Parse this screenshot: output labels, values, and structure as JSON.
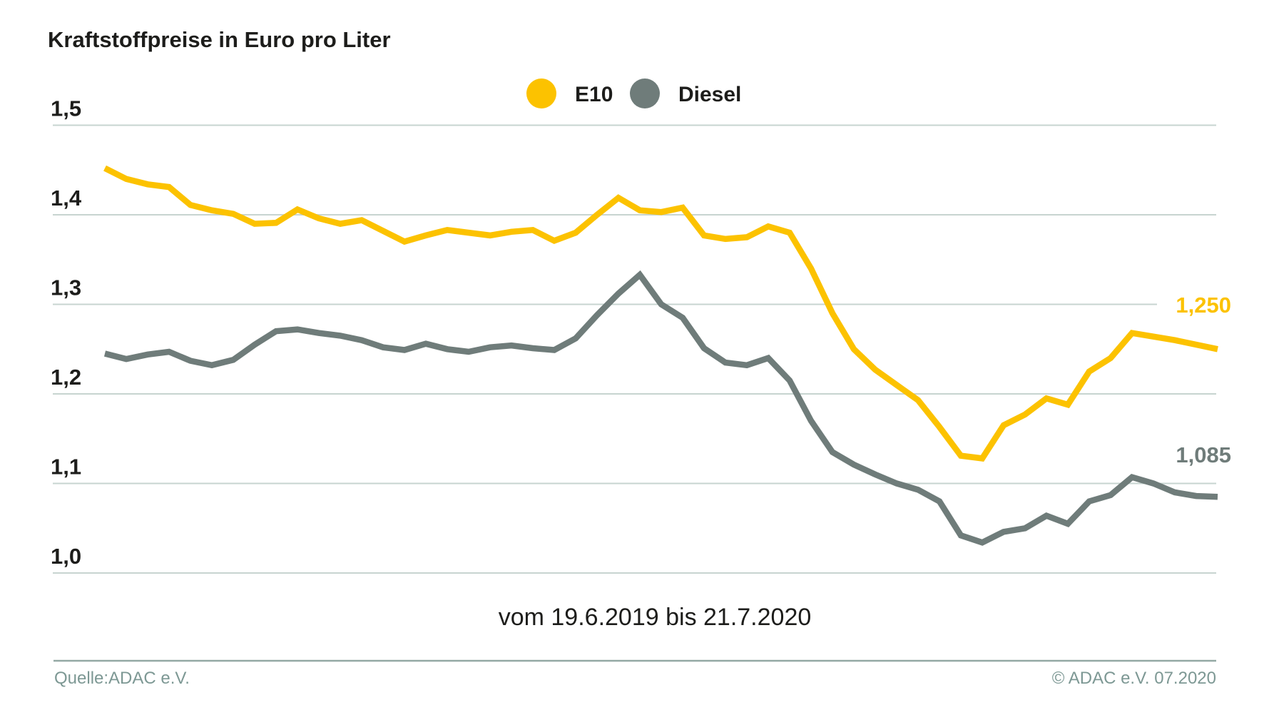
{
  "title": "Kraftstoffpreise in Euro pro Liter",
  "legend": {
    "items": [
      {
        "label": "E10",
        "color": "#fcc200",
        "icon": "circle"
      },
      {
        "label": "Diesel",
        "color": "#6f7c7a",
        "icon": "circle"
      }
    ]
  },
  "caption": "vom 19.6.2019 bis 21.7.2020",
  "footer": {
    "source": "Quelle:ADAC e.V.",
    "copyright": "© ADAC e.V. 07.2020"
  },
  "colors": {
    "e10": "#fcc200",
    "diesel": "#6f7c7a",
    "gridline": "#c7d4d0",
    "separator": "#93a8a4",
    "text": "#1d1d1b",
    "footer_text": "#7d9894"
  },
  "chart_data": {
    "type": "line",
    "title": "Kraftstoffpreise in Euro pro Liter",
    "xlabel": "vom 19.6.2019 bis 21.7.2020",
    "ylabel": "Euro pro Liter",
    "x_start": "19.6.2019",
    "x_end": "21.7.2020",
    "x_unit": "weeks",
    "ylim": [
      1.0,
      1.5
    ],
    "grid": true,
    "legend_position": "top-center",
    "yticks": [
      {
        "label": "1,5",
        "value": 1.5
      },
      {
        "label": "1,4",
        "value": 1.4
      },
      {
        "label": "1,3",
        "value": 1.3
      },
      {
        "label": "1,2",
        "value": 1.2
      },
      {
        "label": "1,1",
        "value": 1.1
      },
      {
        "label": "1,0",
        "value": 1.0
      }
    ],
    "series": [
      {
        "name": "E10",
        "color": "#fcc200",
        "end_label": "1,250",
        "end_value": 1.25,
        "values": [
          1.452,
          1.44,
          1.434,
          1.431,
          1.411,
          1.405,
          1.401,
          1.39,
          1.391,
          1.406,
          1.396,
          1.39,
          1.394,
          1.382,
          1.37,
          1.377,
          1.383,
          1.38,
          1.377,
          1.381,
          1.383,
          1.371,
          1.38,
          1.4,
          1.419,
          1.405,
          1.403,
          1.408,
          1.377,
          1.373,
          1.375,
          1.387,
          1.38,
          1.34,
          1.29,
          1.25,
          1.227,
          1.21,
          1.193,
          1.163,
          1.131,
          1.128,
          1.165,
          1.177,
          1.195,
          1.188,
          1.225,
          1.24,
          1.268,
          1.264,
          1.26,
          1.255,
          1.25
        ]
      },
      {
        "name": "Diesel",
        "color": "#6f7c7a",
        "end_label": "1,085",
        "end_value": 1.085,
        "values": [
          1.245,
          1.239,
          1.244,
          1.247,
          1.237,
          1.232,
          1.238,
          1.255,
          1.27,
          1.272,
          1.268,
          1.265,
          1.26,
          1.252,
          1.249,
          1.256,
          1.25,
          1.247,
          1.252,
          1.254,
          1.251,
          1.249,
          1.262,
          1.288,
          1.312,
          1.333,
          1.3,
          1.285,
          1.251,
          1.235,
          1.232,
          1.24,
          1.215,
          1.17,
          1.135,
          1.121,
          1.11,
          1.1,
          1.093,
          1.08,
          1.042,
          1.034,
          1.046,
          1.05,
          1.064,
          1.055,
          1.08,
          1.087,
          1.107,
          1.1,
          1.09,
          1.086,
          1.085
        ]
      }
    ]
  }
}
